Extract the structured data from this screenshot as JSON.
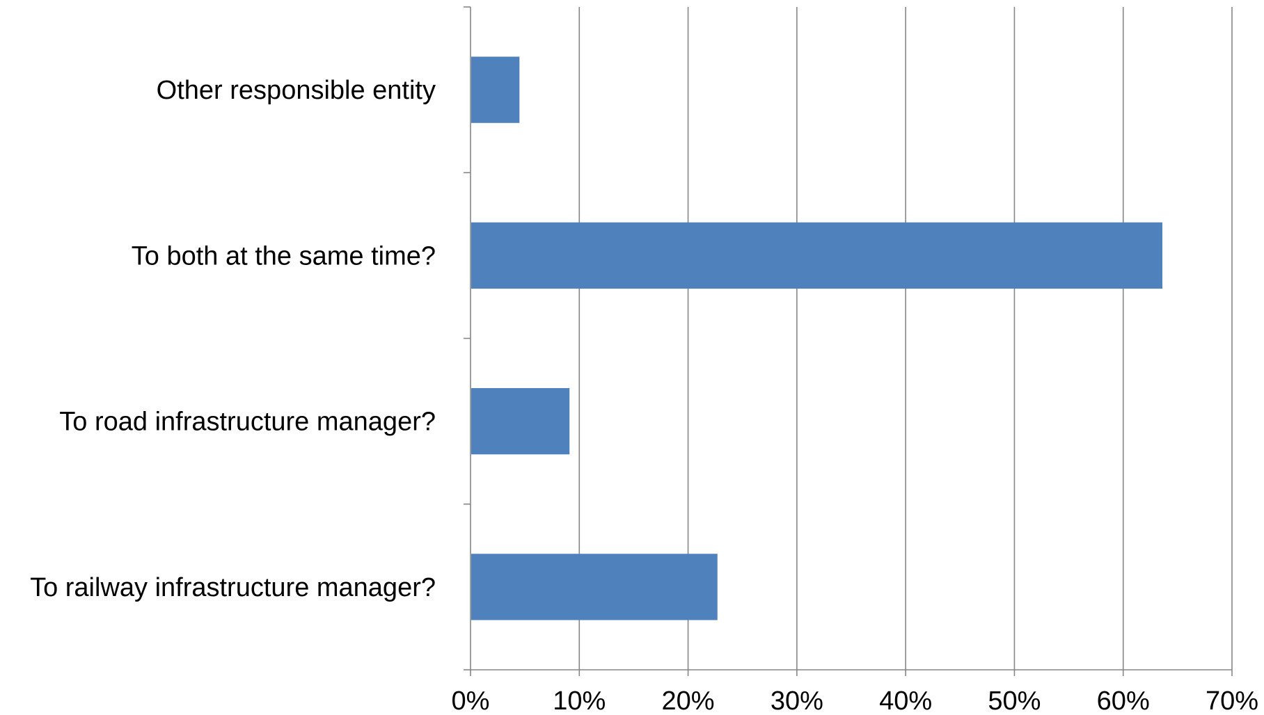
{
  "chart_data": {
    "type": "bar",
    "orientation": "horizontal",
    "categories": [
      "Other responsible entity",
      "To both at the same time?",
      "To road infrastructure manager?",
      "To railway infrastructure manager?"
    ],
    "values": [
      4.5,
      63.6,
      9.1,
      22.7
    ],
    "title": "",
    "xlabel": "",
    "ylabel": "",
    "xlim": [
      0,
      70
    ],
    "x_ticks": [
      "0%",
      "10%",
      "20%",
      "30%",
      "40%",
      "50%",
      "60%",
      "70%"
    ],
    "grid": "vertical",
    "legend": "none",
    "bar_color": "#4f81bd"
  }
}
